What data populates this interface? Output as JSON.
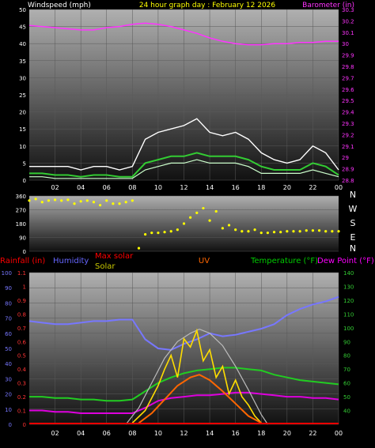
{
  "chart_data": [
    {
      "type": "line",
      "title": "24 hour graph day : February 12 2026",
      "ylabel_left": "Windspeed (mph)",
      "ylabel_right": "Barometer (in)",
      "x_ticks": [
        "02",
        "04",
        "06",
        "08",
        "10",
        "12",
        "14",
        "16",
        "18",
        "20",
        "22",
        "00"
      ],
      "x_hours": [
        0,
        24
      ],
      "ylim_left": [
        0,
        50
      ],
      "yticks_left": [
        0,
        5,
        10,
        15,
        20,
        25,
        30,
        35,
        40,
        45,
        50
      ],
      "ylim_right": [
        28.8,
        30.3
      ],
      "yticks_right": [
        "28.8",
        "28.9",
        "29",
        "29.1",
        "29.2",
        "29.3",
        "29.4",
        "29.5",
        "29.6",
        "29.7",
        "29.8",
        "29.9",
        "30",
        "30.1",
        "30.2",
        "30.3"
      ],
      "colors": {
        "wind_gust": "#ffffff",
        "wind_avg": "#33cc33",
        "wind_speed": "#ccffcc",
        "barometer": "#ff33ff",
        "title": "#ffff00",
        "left_axis": "#ffffff",
        "right_axis": "#ff33ff"
      },
      "series": [
        {
          "name": "Barometer (in)",
          "axis": "right",
          "x": [
            0,
            1,
            2,
            3,
            4,
            5,
            6,
            7,
            8,
            9,
            10,
            11,
            12,
            13,
            14,
            15,
            16,
            17,
            18,
            19,
            20,
            21,
            22,
            23,
            24
          ],
          "values": [
            30.16,
            30.15,
            30.14,
            30.13,
            30.12,
            30.12,
            30.14,
            30.15,
            30.17,
            30.18,
            30.17,
            30.15,
            30.12,
            30.09,
            30.05,
            30.02,
            30.0,
            29.99,
            29.99,
            30.0,
            30.0,
            30.01,
            30.01,
            30.02,
            30.02
          ]
        },
        {
          "name": "gust",
          "axis": "left",
          "x": [
            0,
            1,
            2,
            3,
            4,
            5,
            6,
            7,
            8,
            9,
            10,
            11,
            12,
            13,
            14,
            15,
            16,
            17,
            18,
            19,
            20,
            21,
            22,
            23,
            24
          ],
          "values": [
            4,
            4,
            4,
            4,
            3,
            4,
            4,
            3,
            4,
            12,
            14,
            15,
            16,
            18,
            14,
            13,
            14,
            12,
            8,
            6,
            5,
            6,
            10,
            8,
            3
          ]
        },
        {
          "name": "average",
          "axis": "left",
          "x": [
            0,
            1,
            2,
            3,
            4,
            5,
            6,
            7,
            8,
            9,
            10,
            11,
            12,
            13,
            14,
            15,
            16,
            17,
            18,
            19,
            20,
            21,
            22,
            23,
            24
          ],
          "values": [
            2,
            2,
            1.5,
            1.5,
            1,
            1.5,
            1.5,
            1,
            1,
            5,
            6,
            7,
            7,
            8,
            7,
            7,
            7,
            6,
            4,
            3,
            3,
            3,
            5,
            4,
            1.5
          ]
        },
        {
          "name": "speed",
          "axis": "left",
          "x": [
            0,
            1,
            2,
            3,
            4,
            5,
            6,
            7,
            8,
            9,
            10,
            11,
            12,
            13,
            14,
            15,
            16,
            17,
            18,
            19,
            20,
            21,
            22,
            23,
            24
          ],
          "values": [
            1,
            1,
            0.5,
            0.5,
            0.5,
            0.5,
            0.5,
            0.5,
            0.5,
            3,
            4,
            5,
            5,
            6,
            5,
            5,
            5,
            4,
            2,
            2,
            2,
            2,
            3,
            2,
            1
          ]
        }
      ]
    },
    {
      "type": "scatter",
      "ylabel_right": [
        "N",
        "W",
        "S",
        "E",
        "N"
      ],
      "x_ticks": [],
      "ylim": [
        0,
        360
      ],
      "yticks": [
        0,
        90,
        180,
        270,
        360
      ],
      "colors": {
        "points": "#ffff00"
      },
      "series": [
        {
          "name": "Wind direction",
          "x": [
            0,
            0.5,
            1,
            1.5,
            2,
            2.5,
            3,
            3.5,
            4,
            4.5,
            5,
            5.5,
            6,
            6.5,
            7,
            7.5,
            8,
            8.5,
            9,
            9.5,
            10,
            10.5,
            11,
            11.5,
            12,
            12.5,
            13,
            13.5,
            14,
            14.5,
            15,
            15.5,
            16,
            16.5,
            17,
            17.5,
            18,
            18.5,
            19,
            19.5,
            20,
            20.5,
            21,
            21.5,
            22,
            22.5,
            23,
            23.5,
            24
          ],
          "values": [
            330,
            340,
            320,
            330,
            335,
            330,
            335,
            310,
            325,
            330,
            320,
            300,
            330,
            310,
            310,
            320,
            330,
            20,
            110,
            120,
            120,
            125,
            130,
            140,
            180,
            220,
            250,
            280,
            200,
            260,
            150,
            170,
            140,
            130,
            130,
            140,
            120,
            120,
            125,
            125,
            130,
            130,
            130,
            135,
            135,
            135,
            130,
            130,
            130
          ]
        }
      ]
    },
    {
      "type": "line",
      "legend": [
        {
          "label": "Rainfall (in)",
          "color": "#ff0000"
        },
        {
          "label": "Humidity",
          "color": "#6666ff"
        },
        {
          "label": "Max solar",
          "color": "#ff0000"
        },
        {
          "label": "Solar",
          "color": "#c8c800"
        },
        {
          "label": "UV",
          "color": "#ff6600"
        },
        {
          "label": "Temperature (°F)",
          "color": "#00cc00"
        },
        {
          "label": "Dew Point (°F)",
          "color": "#ff00ff"
        }
      ],
      "x_ticks": [
        "02",
        "04",
        "06",
        "08",
        "10",
        "12",
        "14",
        "16",
        "18",
        "20",
        "22",
        "00"
      ],
      "ylim_left_humidity": [
        0,
        100
      ],
      "yticks_left_humidity": [
        0,
        10,
        20,
        30,
        40,
        50,
        60,
        70,
        80,
        90,
        100
      ],
      "ylim_left_rain": [
        0,
        1.1
      ],
      "yticks_left_rain": [
        "0",
        "0.1",
        "0.2",
        "0.3",
        "0.4",
        "0.5",
        "0.6",
        "0.7",
        "0.8",
        "0.9",
        "1",
        "1.1"
      ],
      "ylim_right": [
        30,
        140
      ],
      "yticks_right": [
        40,
        50,
        60,
        70,
        80,
        90,
        100,
        110,
        120,
        130,
        140
      ],
      "series": [
        {
          "name": "Humidity",
          "color": "#7777ff",
          "axis": "humidity",
          "x": [
            0,
            1,
            2,
            3,
            4,
            5,
            6,
            7,
            8,
            9,
            10,
            11,
            12,
            13,
            14,
            15,
            16,
            17,
            18,
            19,
            20,
            21,
            22,
            23,
            24
          ],
          "values": [
            68,
            67,
            66,
            66,
            67,
            68,
            68,
            69,
            69,
            56,
            50,
            49,
            53,
            56,
            60,
            58,
            59,
            61,
            63,
            66,
            72,
            76,
            79,
            81,
            84
          ]
        },
        {
          "name": "Temperature (°F)",
          "color": "#22cc22",
          "axis": "temp",
          "x": [
            0,
            1,
            2,
            3,
            4,
            5,
            6,
            7,
            8,
            9,
            10,
            11,
            12,
            13,
            14,
            15,
            16,
            17,
            18,
            19,
            20,
            21,
            22,
            23,
            24
          ],
          "values": [
            50,
            50,
            49,
            49,
            48,
            48,
            47,
            47,
            48,
            54,
            60,
            64,
            67,
            69,
            70,
            71,
            71,
            70,
            69,
            66,
            64,
            62,
            61,
            60,
            59
          ]
        },
        {
          "name": "Dew Point (°F)",
          "color": "#dd00dd",
          "axis": "temp",
          "x": [
            0,
            1,
            2,
            3,
            4,
            5,
            6,
            7,
            8,
            9,
            10,
            11,
            12,
            13,
            14,
            15,
            16,
            17,
            18,
            19,
            20,
            21,
            22,
            23,
            24
          ],
          "values": [
            40,
            40,
            39,
            39,
            38,
            38,
            38,
            38,
            38,
            42,
            47,
            49,
            50,
            51,
            51,
            52,
            53,
            53,
            52,
            51,
            50,
            50,
            49,
            49,
            48
          ]
        },
        {
          "name": "Max solar",
          "color": "#bbbbbb",
          "axis": "temp",
          "x": [
            7.5,
            8.5,
            9.5,
            10.5,
            11.5,
            12.5,
            13.2,
            14,
            15,
            16,
            17,
            18,
            18.5
          ],
          "values": [
            30,
            42,
            60,
            78,
            90,
            96,
            99,
            96,
            87,
            72,
            55,
            37,
            30
          ]
        },
        {
          "name": "Solar",
          "color": "#ffdd00",
          "axis": "temp",
          "x": [
            8,
            9,
            10,
            10.5,
            11,
            11.5,
            12,
            12.5,
            13,
            13.5,
            14,
            14.5,
            15,
            15.5,
            16,
            16.5,
            17,
            17.5,
            18
          ],
          "values": [
            31,
            40,
            58,
            70,
            80,
            64,
            92,
            86,
            98,
            76,
            84,
            64,
            72,
            52,
            62,
            50,
            44,
            36,
            31
          ]
        },
        {
          "name": "UV",
          "color": "#ff6600",
          "axis": "temp",
          "x": [
            8.5,
            9.5,
            10.5,
            11.5,
            12.5,
            13.2,
            14,
            15,
            16,
            17,
            18
          ],
          "values": [
            31,
            38,
            48,
            58,
            64,
            66,
            62,
            54,
            45,
            36,
            31
          ]
        }
      ]
    }
  ]
}
